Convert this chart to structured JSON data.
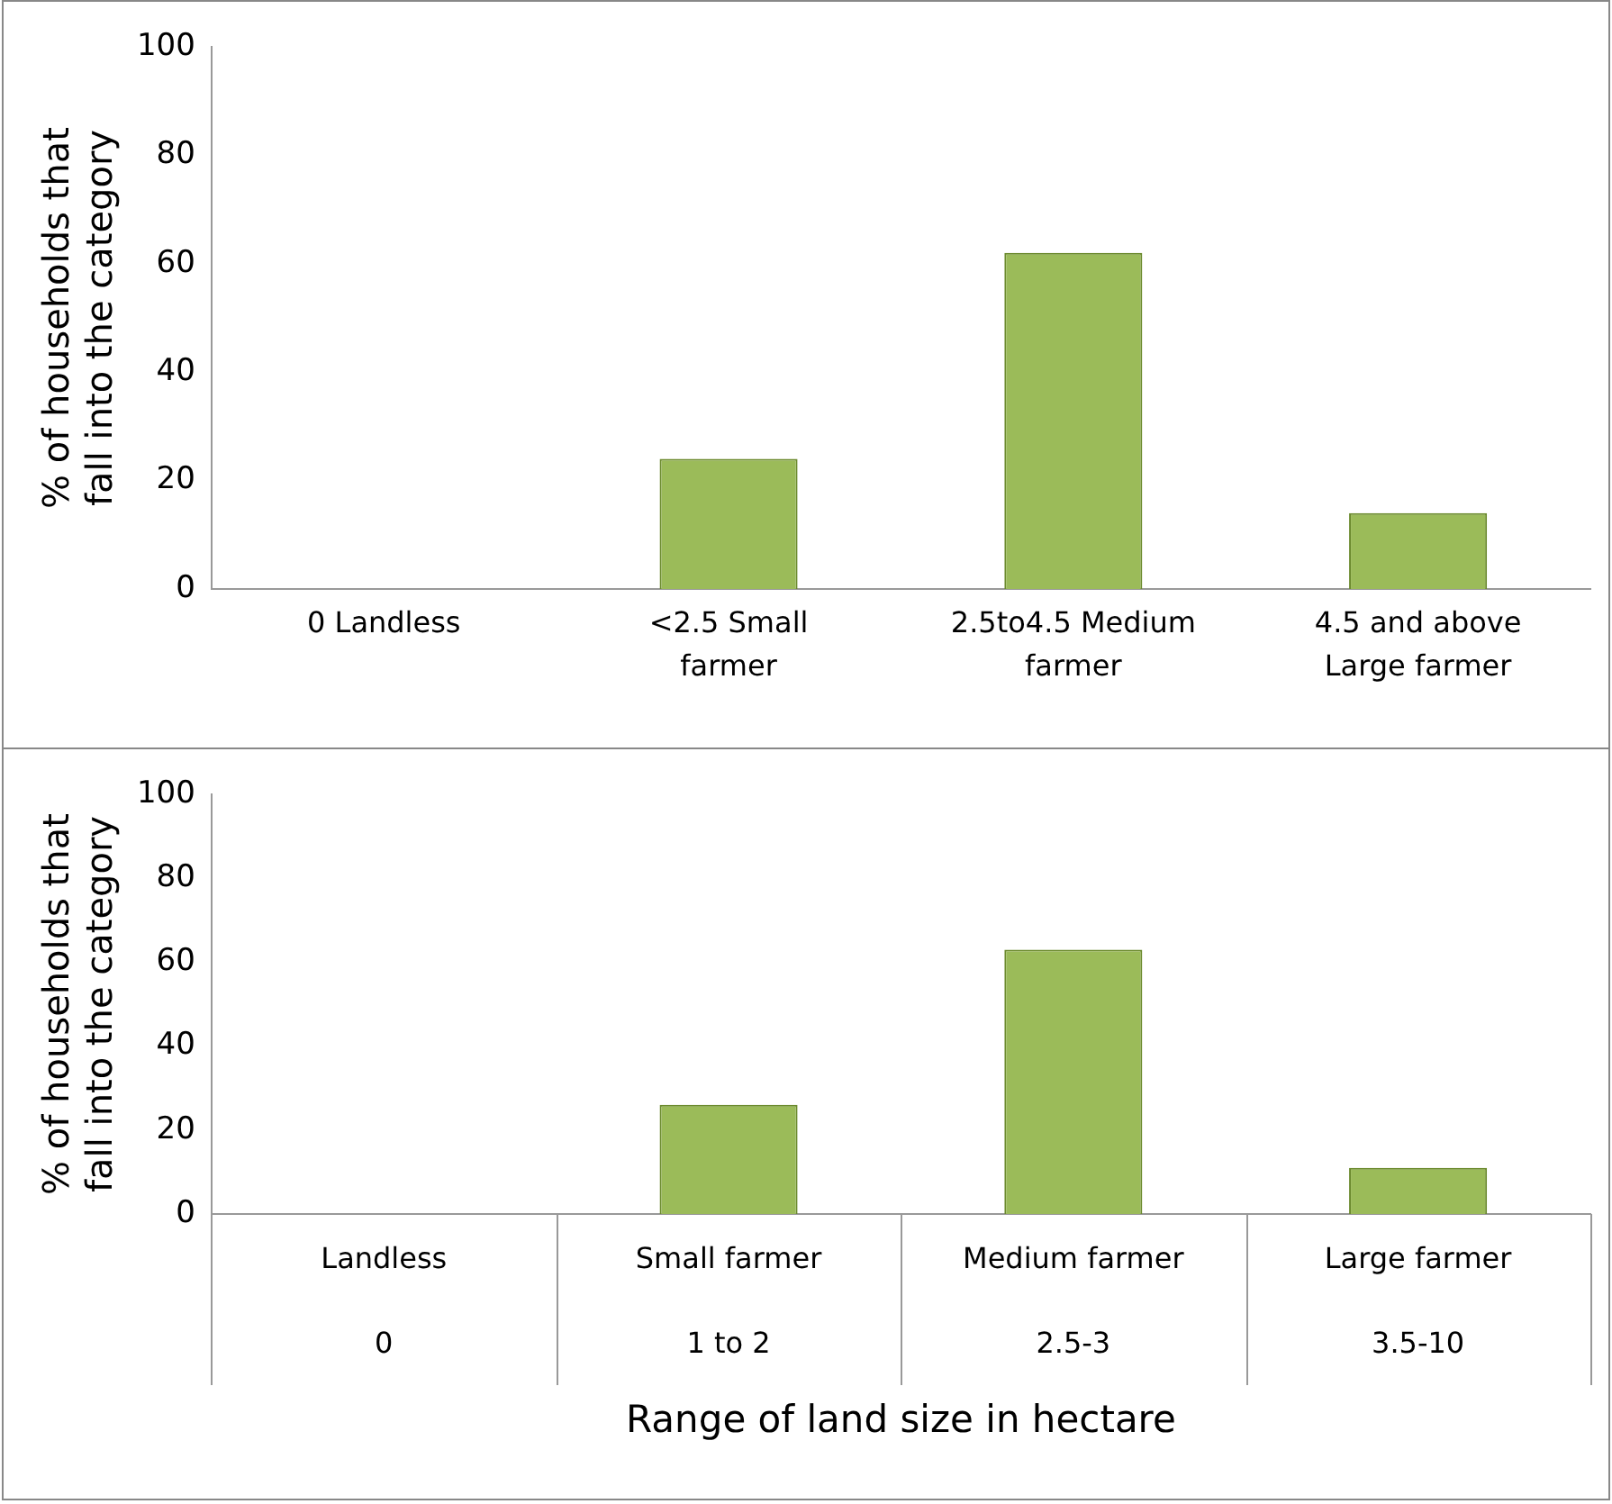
{
  "chart_data": [
    {
      "type": "bar",
      "categories": [
        "0 Landless",
        "<2.5 Small farmer",
        "2.5to4.5 Medium farmer",
        "4.5 and above Large farmer"
      ],
      "values": [
        0,
        24,
        62,
        14
      ],
      "color": "#9bbb59",
      "ylabel": "% of households that fall into the category",
      "ylim": [
        0,
        100
      ],
      "yticks": [
        0,
        20,
        40,
        60,
        80,
        100
      ],
      "grid": false,
      "legend": false
    },
    {
      "type": "bar",
      "categories": [
        "Landless\n0",
        "Small farmer\n1 to 2",
        "Medium farmer\n2.5-3",
        "Large farmer\n3.5-10"
      ],
      "values": [
        0,
        26,
        63,
        11
      ],
      "color": "#9bbb59",
      "xlabel": "Range of land size in hectare",
      "ylabel": "% of households that fall into the category",
      "ylim": [
        0,
        100
      ],
      "yticks": [
        0,
        20,
        40,
        60,
        80,
        100
      ],
      "grid": false,
      "legend": false
    }
  ]
}
